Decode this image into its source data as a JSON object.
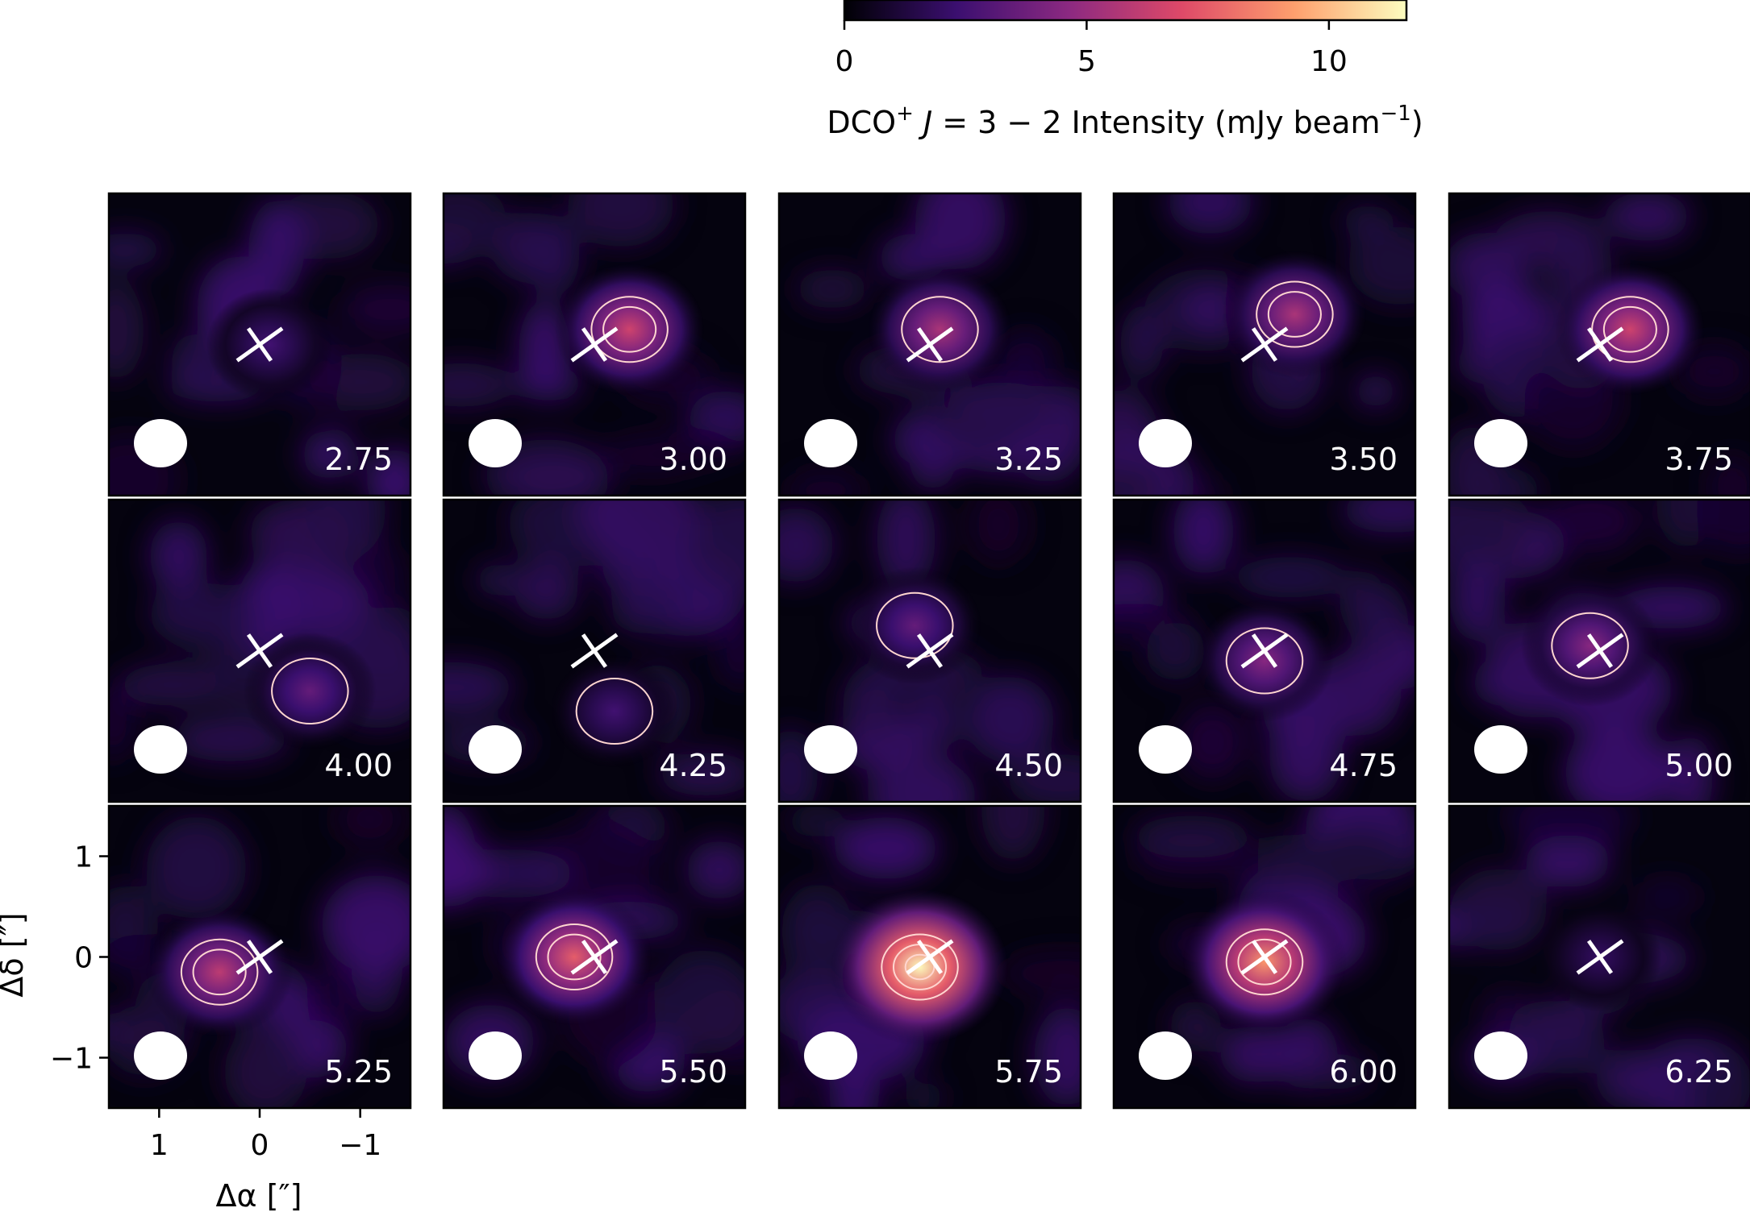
{
  "colorbar": {
    "label_prefix": "DCO",
    "label_sup": "+",
    "label_mid": " J",
    "label_eq": " = 3 − 2 Intensity (mJy beam",
    "label_sup2": "−1",
    "label_end": ")",
    "range": [
      0,
      11.6
    ],
    "ticks": [
      "0",
      "5",
      "10"
    ],
    "tick_values": [
      0,
      5,
      10
    ],
    "colormap": "magma",
    "stops": [
      "#000004",
      "#3b0f70",
      "#8c2981",
      "#de4968",
      "#fe9f6d",
      "#fcfdbf"
    ]
  },
  "colors": {
    "background": "#05030f",
    "marker": "#ffffff",
    "contour": "#ffd6d0",
    "beam": "#ffffff"
  },
  "axes": {
    "ylabel": "Δδ [″]",
    "xlabel": "Δα [″]",
    "x_ticks": [
      "1",
      "0",
      "−1"
    ],
    "x_tick_values": [
      1,
      0,
      -1
    ],
    "y_ticks": [
      "1",
      "0",
      "−1"
    ],
    "y_tick_values": [
      1,
      0,
      -1
    ],
    "xlim": [
      1.5,
      -1.5
    ],
    "ylim": [
      -1.5,
      1.5
    ]
  },
  "chart_data": {
    "type": "heatmap",
    "title": "",
    "xlabel": "Δα [″]",
    "ylabel": "Δδ [″]",
    "xlim": [
      1.5,
      -1.5
    ],
    "ylim": [
      -1.5,
      1.5
    ],
    "layout": "3 rows × 5 columns channel maps",
    "marker": "×",
    "panels": [
      {
        "label": "2.75",
        "peak_mJy": 2.5,
        "peak_offset": [
          -0.1,
          0.0
        ],
        "contours": 0
      },
      {
        "label": "3.00",
        "peak_mJy": 6.5,
        "peak_offset": [
          -0.35,
          0.15
        ],
        "contours": 2
      },
      {
        "label": "3.25",
        "peak_mJy": 5.5,
        "peak_offset": [
          -0.1,
          0.15
        ],
        "contours": 1
      },
      {
        "label": "3.50",
        "peak_mJy": 5.5,
        "peak_offset": [
          -0.3,
          0.3
        ],
        "contours": 2
      },
      {
        "label": "3.75",
        "peak_mJy": 6.5,
        "peak_offset": [
          -0.3,
          0.15
        ],
        "contours": 2
      },
      {
        "label": "4.00",
        "peak_mJy": 3.5,
        "peak_offset": [
          -0.5,
          -0.4
        ],
        "contours": 1
      },
      {
        "label": "4.25",
        "peak_mJy": 2.5,
        "peak_offset": [
          -0.2,
          -0.6
        ],
        "contours": 1
      },
      {
        "label": "4.50",
        "peak_mJy": 3.5,
        "peak_offset": [
          0.15,
          0.25
        ],
        "contours": 1
      },
      {
        "label": "4.75",
        "peak_mJy": 4.5,
        "peak_offset": [
          0.0,
          -0.1
        ],
        "contours": 1
      },
      {
        "label": "5.00",
        "peak_mJy": 4.5,
        "peak_offset": [
          0.1,
          0.05
        ],
        "contours": 1
      },
      {
        "label": "5.25",
        "peak_mJy": 6.0,
        "peak_offset": [
          0.4,
          -0.15
        ],
        "contours": 2
      },
      {
        "label": "5.50",
        "peak_mJy": 7.5,
        "peak_offset": [
          0.2,
          0.0
        ],
        "contours": 2
      },
      {
        "label": "5.75",
        "peak_mJy": 11.5,
        "peak_offset": [
          0.1,
          -0.1
        ],
        "contours": 3
      },
      {
        "label": "6.00",
        "peak_mJy": 9.0,
        "peak_offset": [
          0.0,
          -0.05
        ],
        "contours": 2
      },
      {
        "label": "6.25",
        "peak_mJy": 2.0,
        "peak_offset": [
          0.0,
          0.0
        ],
        "contours": 0
      }
    ]
  }
}
